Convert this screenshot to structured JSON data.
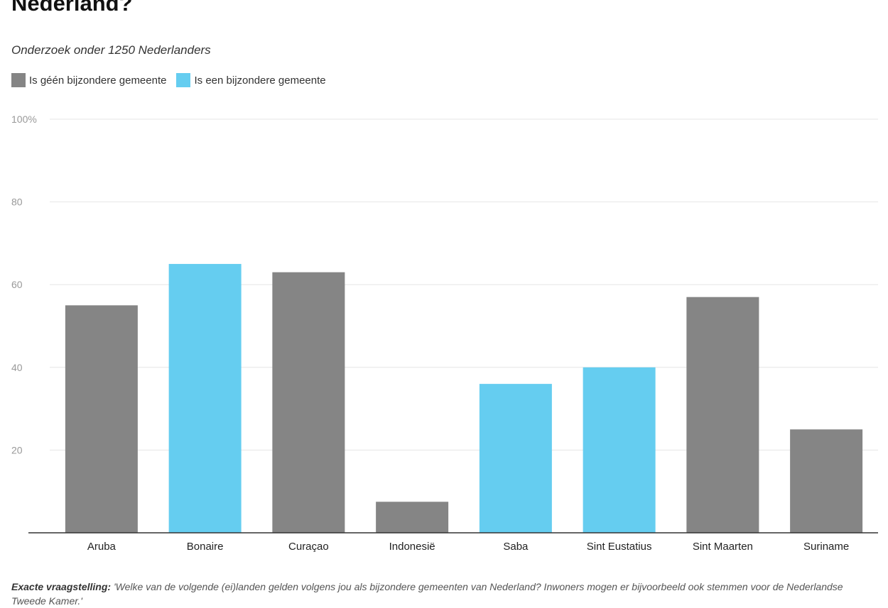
{
  "chart_data": {
    "type": "bar",
    "title": "Nederland?",
    "subtitle": "Onderzoek onder 1250 Nederlanders",
    "categories": [
      "Aruba",
      "Bonaire",
      "Curaçao",
      "Indonesië",
      "Saba",
      "Sint Eustatius",
      "Sint Maarten",
      "Suriname"
    ],
    "values": [
      55,
      65,
      63,
      7.5,
      36,
      40,
      57,
      25
    ],
    "series_index": [
      0,
      1,
      0,
      0,
      1,
      1,
      0,
      0
    ],
    "series": [
      {
        "name": "Is géén bijzondere gemeente",
        "color": "#858585"
      },
      {
        "name": "Is een bijzondere gemeente",
        "color": "#65cdf0"
      }
    ],
    "y_ticks": [
      "",
      "20",
      "40",
      "60",
      "80",
      "100%"
    ],
    "ylim": [
      0,
      100
    ],
    "xlabel": "",
    "ylabel": "",
    "grid": true,
    "legend": "top-left"
  },
  "footnote": {
    "label": "Exacte vraagstelling:",
    "text": "'Welke van de volgende (ei)landen gelden volgens jou als bijzondere gemeenten van Nederland? Inwoners mogen er bijvoorbeeld ook stemmen voor de Nederlandse Tweede Kamer.'"
  }
}
